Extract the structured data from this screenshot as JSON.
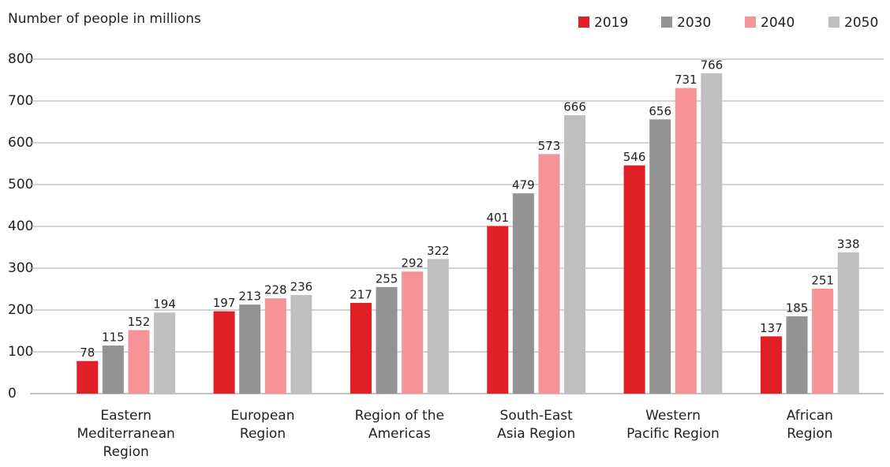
{
  "chart_data": {
    "type": "bar",
    "title": "Number of people in millions",
    "categories": [
      "Eastern\nMediterranean\nRegion",
      "European\nRegion",
      "Region of the\nAmericas",
      "South-East\nAsia Region",
      "Western\nPacific Region",
      "African\nRegion"
    ],
    "series": [
      {
        "name": "2019",
        "color": "#e01f26",
        "values": [
          78,
          197,
          217,
          401,
          546,
          137
        ]
      },
      {
        "name": "2030",
        "color": "#939393",
        "values": [
          115,
          213,
          255,
          479,
          656,
          185
        ]
      },
      {
        "name": "2040",
        "color": "#f59396",
        "values": [
          152,
          228,
          292,
          573,
          731,
          251
        ]
      },
      {
        "name": "2050",
        "color": "#bfbfbf",
        "values": [
          194,
          236,
          322,
          666,
          766,
          338
        ]
      }
    ],
    "ylim": [
      0,
      800
    ],
    "yticks": [
      0,
      100,
      200,
      300,
      400,
      500,
      600,
      700,
      800
    ],
    "grid": true,
    "legend": "top-right"
  }
}
